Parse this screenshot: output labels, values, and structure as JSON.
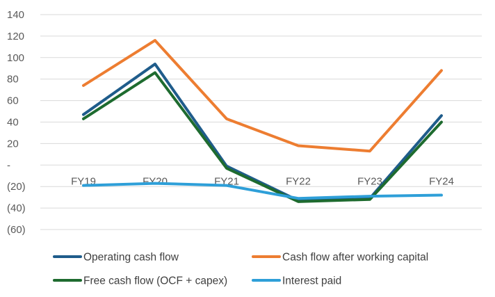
{
  "chart_data": {
    "type": "line",
    "categories": [
      "FY19",
      "FY20",
      "FY21",
      "FY22",
      "FY23",
      "FY24"
    ],
    "ylim": [
      -60,
      140
    ],
    "yticks": [
      140,
      120,
      100,
      80,
      60,
      40,
      20,
      0,
      -20,
      -40,
      -60
    ],
    "ytick_labels": [
      "140",
      "120",
      "100",
      "80",
      "60",
      "40",
      "20",
      "-",
      "(20)",
      "(40)",
      "(60)"
    ],
    "grid": true,
    "legend_position": "bottom",
    "series": [
      {
        "name": "Operating cash flow",
        "color": "#1f5c8b",
        "values": [
          47,
          94,
          -1,
          -33,
          -31,
          46
        ]
      },
      {
        "name": "Cash flow after working capital",
        "color": "#ed7d31",
        "values": [
          74,
          116,
          43,
          18,
          13,
          88
        ]
      },
      {
        "name": "Free cash flow (OCF + capex)",
        "color": "#1e6b2f",
        "values": [
          43,
          86,
          -3,
          -34,
          -32,
          40
        ]
      },
      {
        "name": "Interest paid",
        "color": "#2e9fd8",
        "values": [
          -19,
          -17,
          -19,
          -31,
          -29,
          -28
        ]
      }
    ]
  }
}
